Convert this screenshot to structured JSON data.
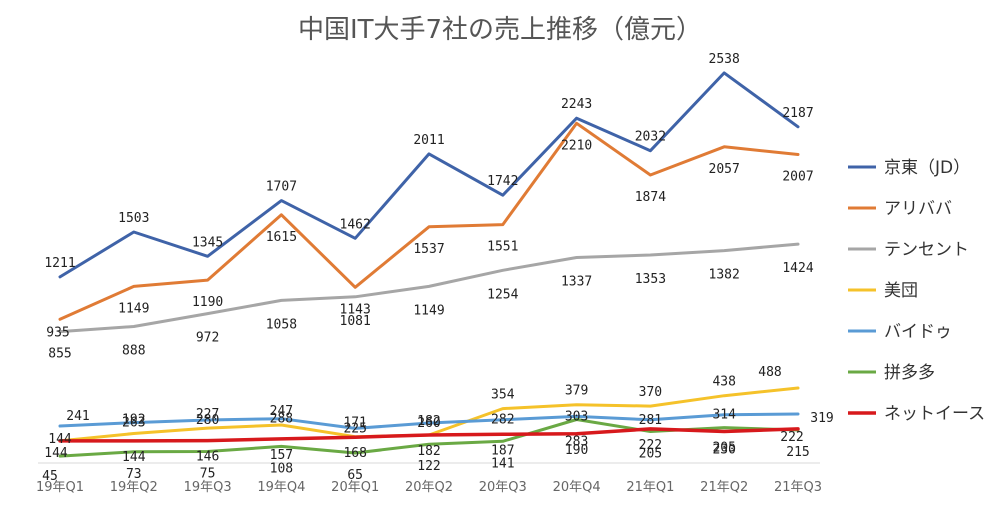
{
  "chart_data": {
    "type": "line",
    "title": "中国IT大手7社の売上推移（億元）",
    "xlabel": "",
    "ylabel": "",
    "categories": [
      "19年Q1",
      "19年Q2",
      "19年Q3",
      "19年Q4",
      "20年Q1",
      "20年Q2",
      "20年Q3",
      "20年Q4",
      "21年Q1",
      "21年Q2",
      "21年Q3"
    ],
    "ylim": [
      0,
      2700
    ],
    "grid": false,
    "legend": "right",
    "series": [
      {
        "name": "京東（JD）",
        "color": "#3f63a8",
        "values": [
          1211,
          1503,
          1345,
          1707,
          1462,
          2011,
          1742,
          2243,
          2032,
          2538,
          2187
        ]
      },
      {
        "name": "アリババ",
        "color": "#e07b35",
        "values": [
          935,
          1149,
          1190,
          1615,
          1143,
          1537,
          1551,
          2210,
          1874,
          2057,
          2007
        ]
      },
      {
        "name": "テンセント",
        "color": "#a6a6a6",
        "values": [
          855,
          888,
          972,
          1058,
          1081,
          1149,
          1254,
          1337,
          1353,
          1382,
          1424
        ]
      },
      {
        "name": "美団",
        "color": "#f5c22a",
        "values": [
          144,
          192,
          227,
          247,
          171,
          182,
          354,
          379,
          370,
          438,
          488
        ]
      },
      {
        "name": "バイドゥ",
        "color": "#5a9bd5",
        "values": [
          241,
          263,
          280,
          288,
          225,
          260,
          282,
          303,
          281,
          314,
          319
        ]
      },
      {
        "name": "拼多多",
        "color": "#6aa944",
        "values": [
          45,
          73,
          75,
          108,
          65,
          122,
          141,
          283,
          205,
          230,
          215
        ]
      },
      {
        "name": "ネットイース",
        "color": "#d7191c",
        "values": [
          144,
          144,
          146,
          157,
          168,
          182,
          187,
          190,
          222,
          205,
          222
        ]
      }
    ]
  }
}
